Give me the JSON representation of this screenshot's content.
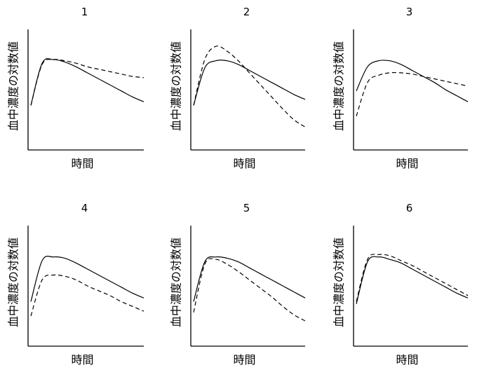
{
  "chart_data": [
    {
      "type": "line",
      "title": "1",
      "xlabel": "時間",
      "ylabel": "血中濃度の対数値",
      "grid": false,
      "legend": "none",
      "series": [
        {
          "style": "solid",
          "x": [
            0.0,
            0.1,
            0.2,
            0.3,
            0.4,
            0.5,
            0.6,
            0.7,
            0.8,
            0.9,
            1.0
          ],
          "y": [
            0.37,
            0.72,
            0.75,
            0.73,
            0.69,
            0.64,
            0.59,
            0.54,
            0.49,
            0.44,
            0.4
          ]
        },
        {
          "style": "dashed",
          "x": [
            0.0,
            0.1,
            0.2,
            0.3,
            0.4,
            0.5,
            0.6,
            0.7,
            0.8,
            0.9,
            1.0
          ],
          "y": [
            0.37,
            0.71,
            0.75,
            0.74,
            0.72,
            0.69,
            0.67,
            0.65,
            0.63,
            0.61,
            0.6
          ]
        }
      ]
    },
    {
      "type": "line",
      "title": "2",
      "xlabel": "時間",
      "ylabel": "血中濃度の対数値",
      "grid": false,
      "legend": "none",
      "series": [
        {
          "style": "solid",
          "x": [
            0.0,
            0.1,
            0.2,
            0.3,
            0.4,
            0.5,
            0.6,
            0.7,
            0.8,
            0.9,
            1.0
          ],
          "y": [
            0.37,
            0.68,
            0.74,
            0.74,
            0.71,
            0.66,
            0.61,
            0.56,
            0.51,
            0.46,
            0.42
          ]
        },
        {
          "style": "dashed",
          "x": [
            0.0,
            0.1,
            0.2,
            0.3,
            0.4,
            0.5,
            0.6,
            0.7,
            0.8,
            0.9,
            1.0
          ],
          "y": [
            0.37,
            0.75,
            0.86,
            0.82,
            0.74,
            0.64,
            0.54,
            0.44,
            0.34,
            0.25,
            0.19
          ]
        }
      ]
    },
    {
      "type": "line",
      "title": "3",
      "xlabel": "時間",
      "ylabel": "血中濃度の対数値",
      "grid": false,
      "legend": "none",
      "series": [
        {
          "style": "solid",
          "x": [
            0.0,
            0.1,
            0.2,
            0.3,
            0.4,
            0.5,
            0.6,
            0.7,
            0.8,
            0.9,
            1.0
          ],
          "y": [
            0.49,
            0.69,
            0.74,
            0.74,
            0.71,
            0.66,
            0.61,
            0.56,
            0.5,
            0.45,
            0.4
          ]
        },
        {
          "style": "dashed",
          "x": [
            0.0,
            0.1,
            0.2,
            0.3,
            0.4,
            0.5,
            0.6,
            0.7,
            0.8,
            0.9,
            1.0
          ],
          "y": [
            0.28,
            0.56,
            0.62,
            0.64,
            0.64,
            0.63,
            0.61,
            0.59,
            0.57,
            0.55,
            0.53
          ]
        }
      ]
    },
    {
      "type": "line",
      "title": "4",
      "xlabel": "時間",
      "ylabel": "血中濃度の対数値",
      "grid": false,
      "legend": "none",
      "series": [
        {
          "style": "solid",
          "x": [
            0.0,
            0.1,
            0.2,
            0.3,
            0.4,
            0.5,
            0.6,
            0.7,
            0.8,
            0.9,
            1.0
          ],
          "y": [
            0.37,
            0.71,
            0.74,
            0.73,
            0.69,
            0.64,
            0.59,
            0.54,
            0.49,
            0.44,
            0.4
          ]
        },
        {
          "style": "dashed",
          "x": [
            0.0,
            0.1,
            0.2,
            0.3,
            0.4,
            0.5,
            0.6,
            0.7,
            0.8,
            0.9,
            1.0
          ],
          "y": [
            0.25,
            0.55,
            0.59,
            0.58,
            0.55,
            0.5,
            0.46,
            0.42,
            0.37,
            0.33,
            0.29
          ]
        }
      ]
    },
    {
      "type": "line",
      "title": "5",
      "xlabel": "時間",
      "ylabel": "血中濃度の対数値",
      "grid": false,
      "legend": "none",
      "series": [
        {
          "style": "solid",
          "x": [
            0.0,
            0.1,
            0.2,
            0.3,
            0.4,
            0.5,
            0.6,
            0.7,
            0.8,
            0.9,
            1.0
          ],
          "y": [
            0.37,
            0.7,
            0.74,
            0.73,
            0.7,
            0.65,
            0.6,
            0.55,
            0.5,
            0.45,
            0.4
          ]
        },
        {
          "style": "dashed",
          "x": [
            0.0,
            0.1,
            0.2,
            0.3,
            0.4,
            0.5,
            0.6,
            0.7,
            0.8,
            0.9,
            1.0
          ],
          "y": [
            0.28,
            0.68,
            0.72,
            0.68,
            0.62,
            0.55,
            0.48,
            0.41,
            0.33,
            0.26,
            0.21
          ]
        }
      ]
    },
    {
      "type": "line",
      "title": "6",
      "xlabel": "時間",
      "ylabel": "血中濃度の対数値",
      "grid": false,
      "legend": "none",
      "series": [
        {
          "style": "solid",
          "x": [
            0.0,
            0.1,
            0.2,
            0.3,
            0.4,
            0.5,
            0.6,
            0.7,
            0.8,
            0.9,
            1.0
          ],
          "y": [
            0.35,
            0.7,
            0.74,
            0.72,
            0.69,
            0.64,
            0.59,
            0.54,
            0.49,
            0.44,
            0.4
          ]
        },
        {
          "style": "dashed",
          "x": [
            0.0,
            0.1,
            0.2,
            0.3,
            0.4,
            0.5,
            0.6,
            0.7,
            0.8,
            0.9,
            1.0
          ],
          "y": [
            0.37,
            0.72,
            0.76,
            0.75,
            0.71,
            0.67,
            0.62,
            0.57,
            0.52,
            0.47,
            0.42
          ]
        }
      ]
    }
  ]
}
